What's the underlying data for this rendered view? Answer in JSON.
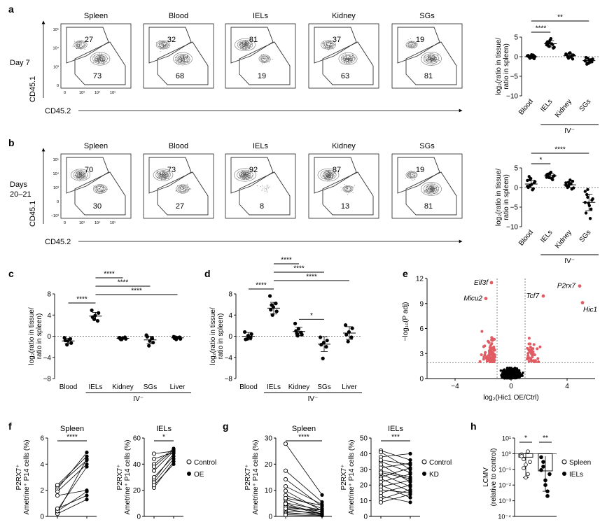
{
  "panel_letters": {
    "a": "a",
    "b": "b",
    "c": "c",
    "d": "d",
    "e": "e",
    "f": "f",
    "g": "g",
    "h": "h"
  },
  "flow_a": {
    "row_label": "Day 7",
    "tissues": [
      "Spleen",
      "Blood",
      "IELs",
      "Kidney",
      "SGs"
    ],
    "upper": [
      "27",
      "32",
      "81",
      "37",
      "19"
    ],
    "lower": [
      "73",
      "68",
      "19",
      "63",
      "81"
    ],
    "y_axis": "CD45.1",
    "x_axis": "CD45.2",
    "y_ticks": [
      "10⁵",
      "10⁴",
      "10³",
      "0"
    ],
    "x_ticks": [
      "0",
      "10³",
      "10⁴",
      "10⁵"
    ]
  },
  "flow_b": {
    "row_label_1": "Days",
    "row_label_2": "20–21",
    "tissues": [
      "Spleen",
      "Blood",
      "IELs",
      "Kidney",
      "SGs"
    ],
    "upper": [
      "70",
      "73",
      "92",
      "87",
      "19"
    ],
    "lower": [
      "30",
      "27",
      "8",
      "13",
      "81"
    ],
    "y_axis": "CD45.1",
    "x_axis": "CD45.2",
    "y_ticks": [
      "10⁵",
      "10⁴",
      "10³",
      "0",
      "−10³"
    ],
    "x_ticks": [
      "0",
      "10³",
      "10⁴",
      "10⁵"
    ]
  },
  "ylabel_ratio_1": "log₂(ratio in tissue/",
  "ylabel_ratio_2": "ratio in spleen)",
  "iv_label": "IV⁻",
  "chart_data": [
    {
      "panel": "a-right",
      "type": "scatter",
      "categories": [
        "Blood",
        "IELs",
        "Kidney",
        "SGs"
      ],
      "ylim": [
        -10,
        5
      ],
      "yticks": [
        5,
        0,
        -5,
        -10
      ],
      "series": [
        {
          "values": [
            [
              0.2,
              -0.3,
              0.1,
              0.4,
              -0.5,
              0.3,
              -0.1,
              0.5,
              -0.2,
              0.0,
              0.2,
              -0.4
            ],
            [
              3.5,
              2.6,
              4.2,
              3.1,
              2.2,
              3.8,
              2.9,
              4.6,
              3.3,
              2.4,
              3.0,
              3.7
            ],
            [
              0.6,
              -0.2,
              0.9,
              0.3,
              -0.6,
              0.5,
              0.1,
              1.0,
              -0.1,
              0.4,
              0.7,
              -0.4
            ],
            [
              -1.1,
              -0.4,
              -1.7,
              -0.8,
              -1.3,
              -0.2,
              -1.9,
              -0.9,
              -1.4,
              -0.6,
              -1.0,
              -1.6
            ]
          ]
        }
      ],
      "means": [
        0.0,
        3.3,
        0.25,
        -1.0
      ],
      "sd": [
        0.3,
        0.8,
        0.5,
        0.5
      ],
      "significance": [
        {
          "from": 0,
          "to": 1,
          "label": "****"
        },
        {
          "from": 0,
          "to": 3,
          "label": "**"
        }
      ]
    },
    {
      "panel": "b-right",
      "type": "scatter",
      "categories": [
        "Blood",
        "IELs",
        "Kidney",
        "SGs"
      ],
      "ylim": [
        -10,
        5
      ],
      "yticks": [
        5,
        0,
        -5,
        -10
      ],
      "series": [
        {
          "values": [
            [
              1.8,
              0.5,
              2.3,
              -0.3,
              1.2,
              0.0,
              2.8,
              0.8,
              -0.6,
              1.5,
              0.3,
              2.0
            ],
            [
              3.2,
              2.5,
              3.6,
              2.0,
              2.9,
              3.4,
              2.7,
              3.9,
              2.3,
              3.0,
              2.6,
              3.5
            ],
            [
              1.2,
              0.3,
              0.8,
              -0.4,
              1.6,
              0.5,
              0.0,
              1.9,
              0.9,
              -0.1,
              0.6,
              1.3
            ],
            [
              -1.0,
              -2.5,
              -4.0,
              -5.5,
              -3.2,
              -6.5,
              -1.8,
              -4.6,
              -7.9,
              -2.9,
              -3.8,
              -0.5
            ]
          ]
        }
      ],
      "means": [
        0.9,
        3.0,
        0.7,
        -3.8
      ],
      "sd": [
        1.0,
        0.6,
        0.7,
        2.1
      ],
      "significance": [
        {
          "from": 0,
          "to": 1,
          "label": "*"
        },
        {
          "from": 0,
          "to": 3,
          "label": "****"
        }
      ]
    },
    {
      "panel": "c",
      "type": "scatter",
      "categories": [
        "Blood",
        "IELs",
        "Kidney",
        "SGs",
        "Liver"
      ],
      "ylim": [
        -8,
        8
      ],
      "yticks": [
        8,
        4,
        0,
        -4,
        -8
      ],
      "series": [
        {
          "values": [
            [
              -0.3,
              -1.6,
              -0.9,
              -0.5,
              -1.3,
              -0.8
            ],
            [
              4.9,
              3.2,
              3.9,
              2.9,
              4.4,
              3.6
            ],
            [
              -0.3,
              -0.6,
              -0.4,
              -0.2,
              -0.5,
              -0.3,
              -0.6
            ],
            [
              0.2,
              -1.8,
              -0.9,
              -0.4,
              -1.2,
              -0.1
            ],
            [
              -0.1,
              -0.6,
              -0.3,
              -0.2,
              -0.5,
              -0.4,
              -0.2
            ]
          ]
        }
      ],
      "means": [
        -0.9,
        3.8,
        -0.4,
        -0.7,
        -0.3
      ],
      "sd": [
        0.5,
        0.7,
        0.15,
        0.7,
        0.2
      ],
      "significance": [
        {
          "from": 0,
          "to": 1,
          "label": "****",
          "level": 0
        },
        {
          "from": 1,
          "to": 2,
          "label": "****",
          "level": 3
        },
        {
          "from": 1,
          "to": 3,
          "label": "****",
          "level": 2
        },
        {
          "from": 1,
          "to": 4,
          "label": "****",
          "level": 1
        }
      ]
    },
    {
      "panel": "d",
      "type": "scatter",
      "categories": [
        "Blood",
        "IELs",
        "Kidney",
        "SGs",
        "Liver"
      ],
      "ylim": [
        -8,
        8
      ],
      "yticks": [
        8,
        4,
        0,
        -4,
        -8
      ],
      "series": [
        {
          "values": [
            [
              0.8,
              -0.5,
              0.1,
              -0.3,
              0.4,
              -0.6
            ],
            [
              7.6,
              4.0,
              5.5,
              6.2,
              4.7,
              5.0,
              5.9
            ],
            [
              2.4,
              0.1,
              1.4,
              0.7,
              0.3,
              1.0,
              0.5
            ],
            [
              -0.2,
              -4.2,
              -1.2,
              -2.0,
              -0.8,
              -1.6
            ],
            [
              2.1,
              -1.0,
              0.8,
              -0.2,
              1.5,
              0.3
            ]
          ]
        }
      ],
      "means": [
        0.0,
        5.3,
        0.9,
        -1.5,
        0.6
      ],
      "sd": [
        0.7,
        1.1,
        0.8,
        1.4,
        1.2
      ],
      "significance": [
        {
          "from": 0,
          "to": 1,
          "label": "****",
          "level": 0
        },
        {
          "from": 1,
          "to": 2,
          "label": "****",
          "level": 3
        },
        {
          "from": 1,
          "to": 3,
          "label": "****",
          "level": 2
        },
        {
          "from": 1,
          "to": 4,
          "label": "****",
          "level": 1
        },
        {
          "from": 2,
          "to": 3,
          "label": "*",
          "level": 0
        }
      ]
    },
    {
      "panel": "e",
      "type": "scatter",
      "xlabel": "log₂(Hic1 OE/Ctrl)",
      "ylabel": "−log₁₀(P adj)",
      "xlim": [
        -6,
        6
      ],
      "ylim": [
        0,
        12
      ],
      "xticks": [
        -4,
        0,
        4
      ],
      "yticks": [
        0,
        3,
        6,
        9,
        12
      ],
      "thresholds": {
        "x": [
          -1,
          1
        ],
        "y": 1.9
      },
      "labeled_points": [
        {
          "label": "Eif3f",
          "x": -1.4,
          "y": 11.5
        },
        {
          "label": "Micu2",
          "x": -1.8,
          "y": 9.6
        },
        {
          "label": "P2rx7",
          "x": 4.9,
          "y": 11.1
        },
        {
          "label": "Tcf7",
          "x": 2.3,
          "y": 9.9
        },
        {
          "label": "Hic1",
          "x": 5.1,
          "y": 9.1
        }
      ]
    },
    {
      "panel": "f-spleen",
      "type": "line",
      "title": "Spleen",
      "ylabel": "P2RX7⁺ Ametrine⁺ P14 cells (%)",
      "ylim": [
        0,
        6
      ],
      "yticks": [
        0,
        2,
        4,
        6
      ],
      "pairs": [
        [
          2.1,
          4.9
        ],
        [
          2.3,
          4.3
        ],
        [
          1.9,
          4.0
        ],
        [
          0.3,
          4.4
        ],
        [
          0.5,
          3.8
        ],
        [
          0.2,
          1.3
        ],
        [
          0.4,
          1.9
        ],
        [
          1.6,
          2.0
        ],
        [
          2.4,
          4.6
        ],
        [
          0.6,
          1.6
        ]
      ],
      "significance": "****"
    },
    {
      "panel": "f-iels",
      "type": "line",
      "title": "IELs",
      "ylim": [
        0,
        60
      ],
      "yticks": [
        0,
        20,
        40,
        60
      ],
      "pairs": [
        [
          22,
          42
        ],
        [
          28,
          48
        ],
        [
          35,
          50
        ],
        [
          40,
          52
        ],
        [
          48,
          50
        ],
        [
          30,
          46
        ],
        [
          26,
          44
        ],
        [
          44,
          49
        ],
        [
          38,
          51
        ],
        [
          24,
          40
        ]
      ],
      "legend": [
        "Control",
        "OE"
      ],
      "significance": "*"
    },
    {
      "panel": "g-spleen",
      "type": "line",
      "title": "Spleen",
      "ylabel": "P2RX7⁺ Ametrine⁺ P14 cells (%)",
      "ylim": [
        0,
        30
      ],
      "yticks": [
        0,
        10,
        20,
        30
      ],
      "pairs": [
        [
          27.8,
          8.2
        ],
        [
          17.5,
          5.5
        ],
        [
          14.2,
          3.8
        ],
        [
          11.5,
          4.6
        ],
        [
          9.8,
          2.1
        ],
        [
          8.1,
          3.0
        ],
        [
          6.5,
          1.5
        ],
        [
          5.2,
          2.4
        ],
        [
          4.3,
          0.8
        ],
        [
          3.6,
          1.9
        ],
        [
          2.8,
          0.6
        ],
        [
          2.1,
          1.2
        ],
        [
          1.5,
          0.4
        ],
        [
          1.0,
          0.9
        ],
        [
          0.6,
          0.3
        ],
        [
          3.0,
          2.5
        ],
        [
          4.8,
          1.0
        ],
        [
          7.0,
          4.2
        ]
      ],
      "significance": "****"
    },
    {
      "panel": "g-iels",
      "type": "line",
      "title": "IELs",
      "ylim": [
        0,
        50
      ],
      "yticks": [
        0,
        10,
        20,
        30,
        40,
        50
      ],
      "pairs": [
        [
          42,
          36
        ],
        [
          41,
          30
        ],
        [
          38,
          40
        ],
        [
          35,
          28
        ],
        [
          33,
          22
        ],
        [
          31,
          34
        ],
        [
          29,
          25
        ],
        [
          27,
          19
        ],
        [
          25,
          31
        ],
        [
          24,
          16
        ],
        [
          22,
          27
        ],
        [
          20,
          12
        ],
        [
          19,
          23
        ],
        [
          17,
          15
        ],
        [
          15,
          20
        ],
        [
          13,
          9
        ],
        [
          11,
          17
        ],
        [
          9,
          14
        ],
        [
          28,
          24
        ],
        [
          36,
          33
        ]
      ],
      "legend": [
        "Control",
        "KD"
      ],
      "significance": "***"
    },
    {
      "panel": "h",
      "type": "bar",
      "ylabel": "LCMV (relative to control)",
      "yscale": "log",
      "ylim": [
        0.0001,
        10
      ],
      "yticks": [
        "10¹",
        "10⁰",
        "10⁻¹",
        "10⁻²",
        "10⁻³",
        "10⁻⁴"
      ],
      "categories": [
        "Spleen",
        "IELs"
      ],
      "bar_values": [
        0.6,
        0.08
      ],
      "err_low": [
        0.03,
        0.004
      ],
      "err_high": [
        1.2,
        0.7
      ],
      "points": [
        [
          0.9,
          0.45,
          0.2,
          0.05,
          0.3,
          0.7,
          0.12,
          0.03,
          1.4
        ],
        [
          0.6,
          0.15,
          0.02,
          0.004,
          0.05,
          0.09,
          0.3,
          0.01,
          0.002
        ]
      ],
      "legend": [
        "Spleen",
        "IELs"
      ],
      "significance": [
        "*",
        "**"
      ]
    }
  ]
}
